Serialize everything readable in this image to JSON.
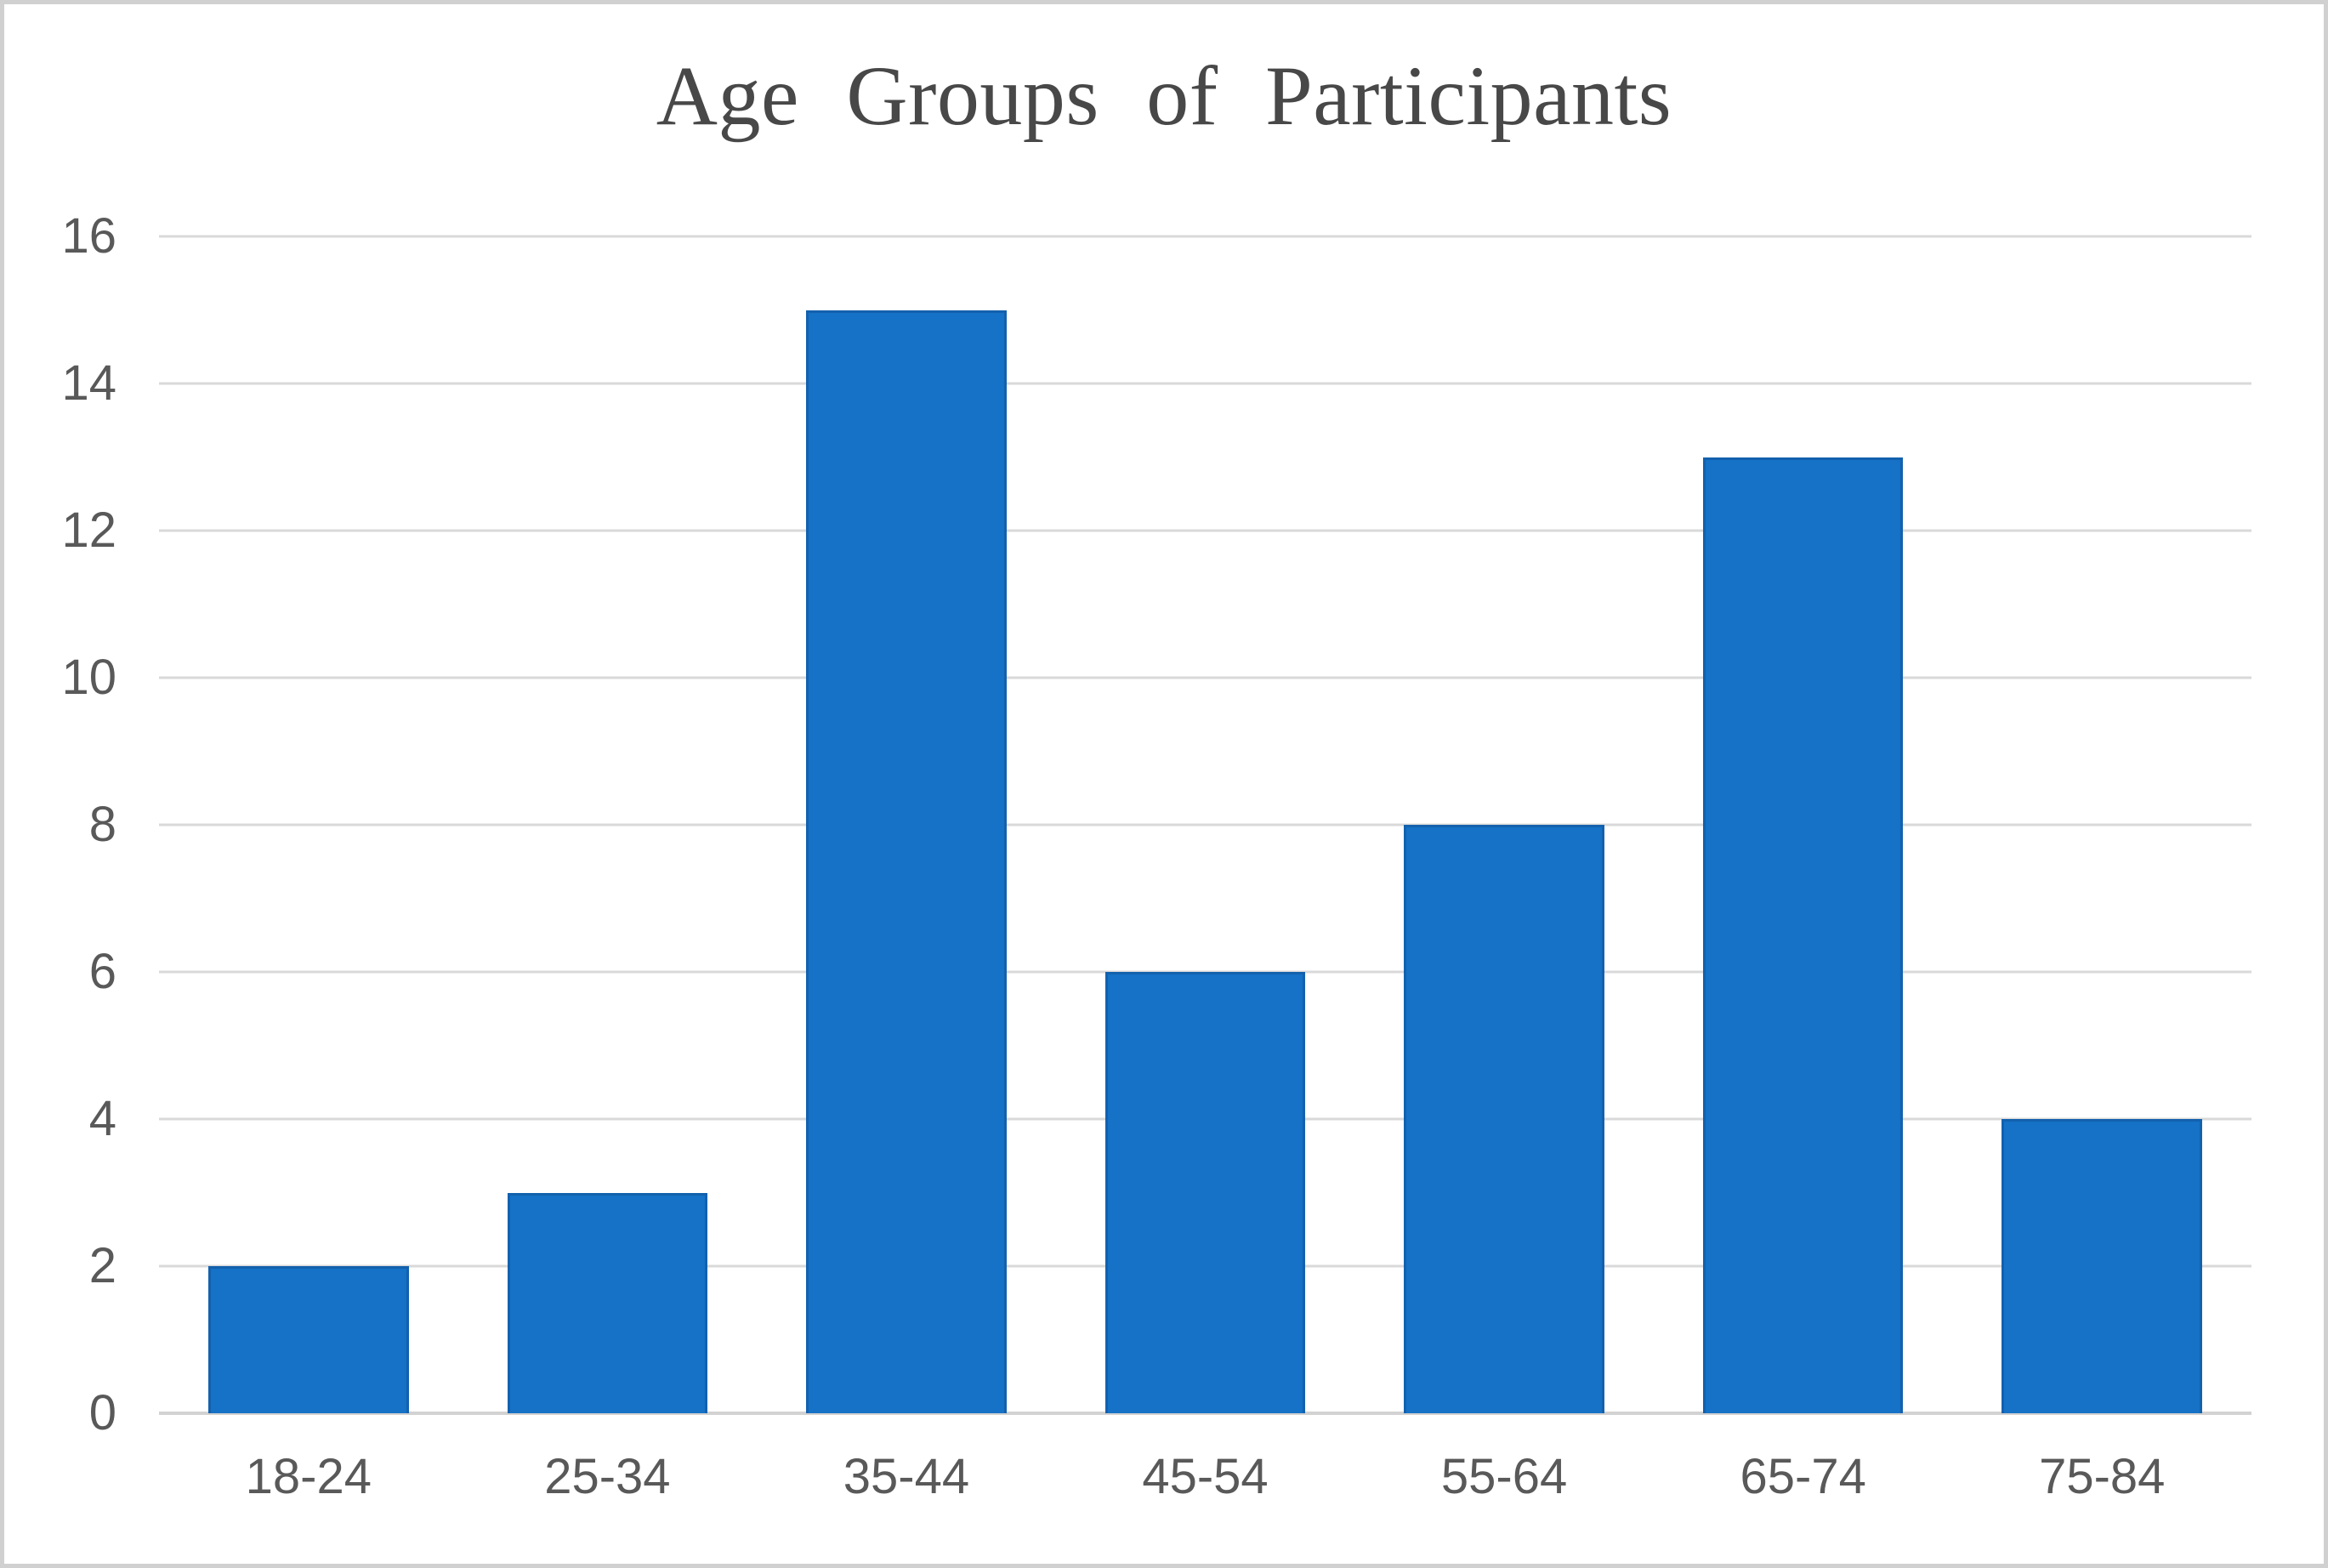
{
  "page": {
    "background": "#ffffff",
    "frame_border_color": "#d0d0d0"
  },
  "chart_data": {
    "type": "bar",
    "title": "Age Groups of Participants",
    "categories": [
      "18-24",
      "25-34",
      "35-44",
      "45-54",
      "55-64",
      "65-74",
      "75-84"
    ],
    "values": [
      2,
      3,
      15,
      6,
      8,
      13,
      4
    ],
    "xlabel": "",
    "ylabel": "",
    "ylim": [
      0,
      16
    ],
    "yticks": [
      0,
      2,
      4,
      6,
      8,
      10,
      12,
      14,
      16
    ],
    "grid": "horizontal",
    "legend": "none",
    "colors": {
      "bar_fill": "#1572c6",
      "bar_border": "#1361ae",
      "gridline": "#d9d9d9",
      "axis_line": "#d2d2d2",
      "tick_label": "#595959",
      "title": "#484848"
    }
  }
}
